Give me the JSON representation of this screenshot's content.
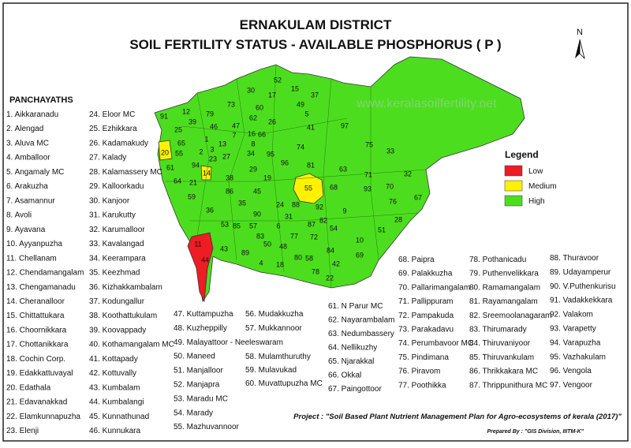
{
  "header": {
    "title": "ERNAKULAM DISTRICT",
    "subtitle": "SOIL FERTILITY STATUS - AVAILABLE PHOSPHORUS ( P )"
  },
  "north": "N",
  "watermark": "www.keralasoilfertility.net",
  "panchayaths": {
    "heading": "PANCHAYATHS",
    "items": [
      "1. Aikkaranadu",
      "2. Alengad",
      "3. Aluva MC",
      "4. Amballoor",
      "5. Angamaly MC",
      "6. Arakuzha",
      "7. Asamannur",
      "8. Avoli",
      "9. Ayavana",
      "10. Ayyanpuzha",
      "11. Chellanam",
      "12. Chendamangalam",
      "13. Chengamanadu",
      "14. Cheranalloor",
      "15. Chittattukara",
      "16. Choornikkara",
      "17. Chottanikkara",
      "18. Cochin Corp.",
      "19. Edakkattuvayal",
      "20. Edathala",
      "21. Edavanakkad",
      "22. Elamkunnapuzha",
      "23. Elenji",
      "24. Eloor MC",
      "25. Ezhikkara",
      "26. Kadamakudy",
      "27. Kalady",
      "28. Kalamassery MC",
      "29. Kalloorkadu",
      "30. Kanjoor",
      "31. Karukutty",
      "32. Karumalloor",
      "33. Kavalangad",
      "34. Keerampara",
      "35. Keezhmad",
      "36. Kizhakkambalam",
      "37. Kodungallur",
      "38. Koothattukulam",
      "39. Koovappady",
      "40. Kothamangalam MC",
      "41. Kottapady",
      "42. Kottuvally",
      "43. Kumbalam",
      "44. Kumbalangi",
      "45. Kunnathunad",
      "46. Kunnukara",
      "47. Kuttampuzha",
      "48. Kuzheppilly",
      "49. Malayattoor - Neeleswaram",
      "50. Maneed",
      "51. Manjalloor",
      "52. Manjapra",
      "53. Maradu MC",
      "54. Marady",
      "55. Mazhuvannoor",
      "56. Mudakkuzha",
      "57. Mukkannoor",
      "58. Mulamthuruthy",
      "59. Mulavukad",
      "60. Muvattupuzha MC",
      "61. N Parur MC",
      "62. Nayarambalam",
      "63. Nedumbassery",
      "64. Nellikuzhy",
      "65. Njarakkal",
      "66. Okkal",
      "67. Paingottoor",
      "68. Paipra",
      "69. Palakkuzha",
      "70. Pallarimangalam",
      "71. Pallippuram",
      "72. Pampakuda",
      "73. Parakadavu",
      "74. Perumbavoor MC",
      "75. Pindimana",
      "76. Piravom",
      "77. Poothikka",
      "78. Pothanicadu",
      "79. Puthenvelikkara",
      "80. Ramamangalam",
      "81. Rayamangalam",
      "82. Sreemoolanagaram",
      "83. Thirumarady",
      "84. Thiruvaniyoor",
      "85. Thiruvankulam",
      "86. Thrikkakara MC",
      "87. Thrippunithura MC",
      "88. Thuravoor",
      "89. Udayamperur",
      "90. V.Puthenkurisu",
      "91. Vadakkekkara",
      "92. Valakom",
      "93. Varapetty",
      "94. Varapuzha",
      "95. Vazhakulam",
      "96. Vengola",
      "97. Vengoor"
    ]
  },
  "map_labels": [
    "91",
    "12",
    "79",
    "46",
    "25",
    "39",
    "20",
    "55",
    "61",
    "94",
    "14",
    "64",
    "59",
    "1",
    "3",
    "2",
    "23",
    "27",
    "7",
    "47",
    "13",
    "73",
    "62",
    "60",
    "30",
    "17",
    "52",
    "49",
    "26",
    "66",
    "8",
    "34",
    "95",
    "74",
    "96",
    "81",
    "41",
    "97",
    "75",
    "33",
    "63",
    "32",
    "71",
    "93",
    "70",
    "67",
    "76",
    "28",
    "51",
    "10",
    "54",
    "9",
    "68",
    "55",
    "92",
    "89",
    "85",
    "57",
    "53",
    "29",
    "38",
    "86",
    "35",
    "45",
    "19",
    "24",
    "90",
    "6",
    "50",
    "31",
    "72",
    "77",
    "80",
    "48",
    "4",
    "18",
    "78",
    "58",
    "84",
    "42",
    "22",
    "69",
    "36",
    "43",
    "11",
    "44",
    "16",
    "5",
    "37",
    "15",
    "65",
    "21",
    "83",
    "87",
    "88",
    "82"
  ],
  "legend": {
    "title": "Legend",
    "items": [
      {
        "label": "Low",
        "color": "#ee1c25"
      },
      {
        "label": "Medium",
        "color": "#fff200"
      },
      {
        "label": "High",
        "color": "#4cde1e"
      }
    ]
  },
  "project": "Project : \"Soil Based Plant Nutrient Management Plan for Agro-ecosystems of kerala (2017)\"",
  "prepared_by": "Prepared By : \"GIS Division, IIITM-K\""
}
